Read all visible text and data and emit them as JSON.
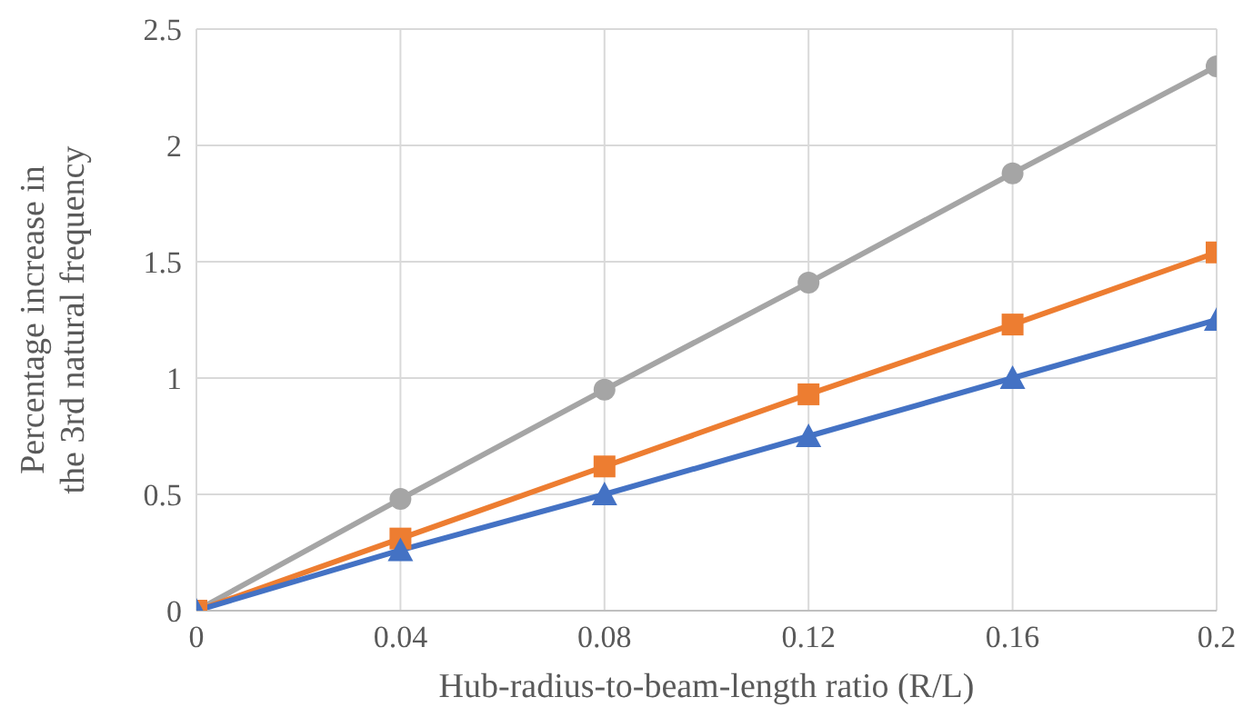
{
  "chart_data": {
    "type": "line",
    "xlabel": "Hub-radius-to-beam-length ratio (R/L)",
    "ylabel": "Percentage increase in the 3rd natural frequency",
    "x": [
      0,
      0.04,
      0.08,
      0.12,
      0.16,
      0.2
    ],
    "series": [
      {
        "color": "#a5a5a5",
        "marker": "circle",
        "values": [
          0,
          0.48,
          0.95,
          1.41,
          1.88,
          2.34
        ]
      },
      {
        "color": "#ed7d31",
        "marker": "square",
        "values": [
          0,
          0.31,
          0.62,
          0.93,
          1.23,
          1.54
        ]
      },
      {
        "color": "#4472c4",
        "marker": "triangle",
        "values": [
          0,
          0.26,
          0.5,
          0.75,
          1.0,
          1.25
        ]
      }
    ],
    "xlim": [
      0,
      0.2
    ],
    "xticks": [
      0,
      0.04,
      0.08,
      0.12,
      0.16,
      0.2
    ],
    "ylim": [
      0,
      2.5
    ],
    "yticks": [
      0,
      0.5,
      1,
      1.5,
      2,
      2.5
    ],
    "grid": true
  }
}
